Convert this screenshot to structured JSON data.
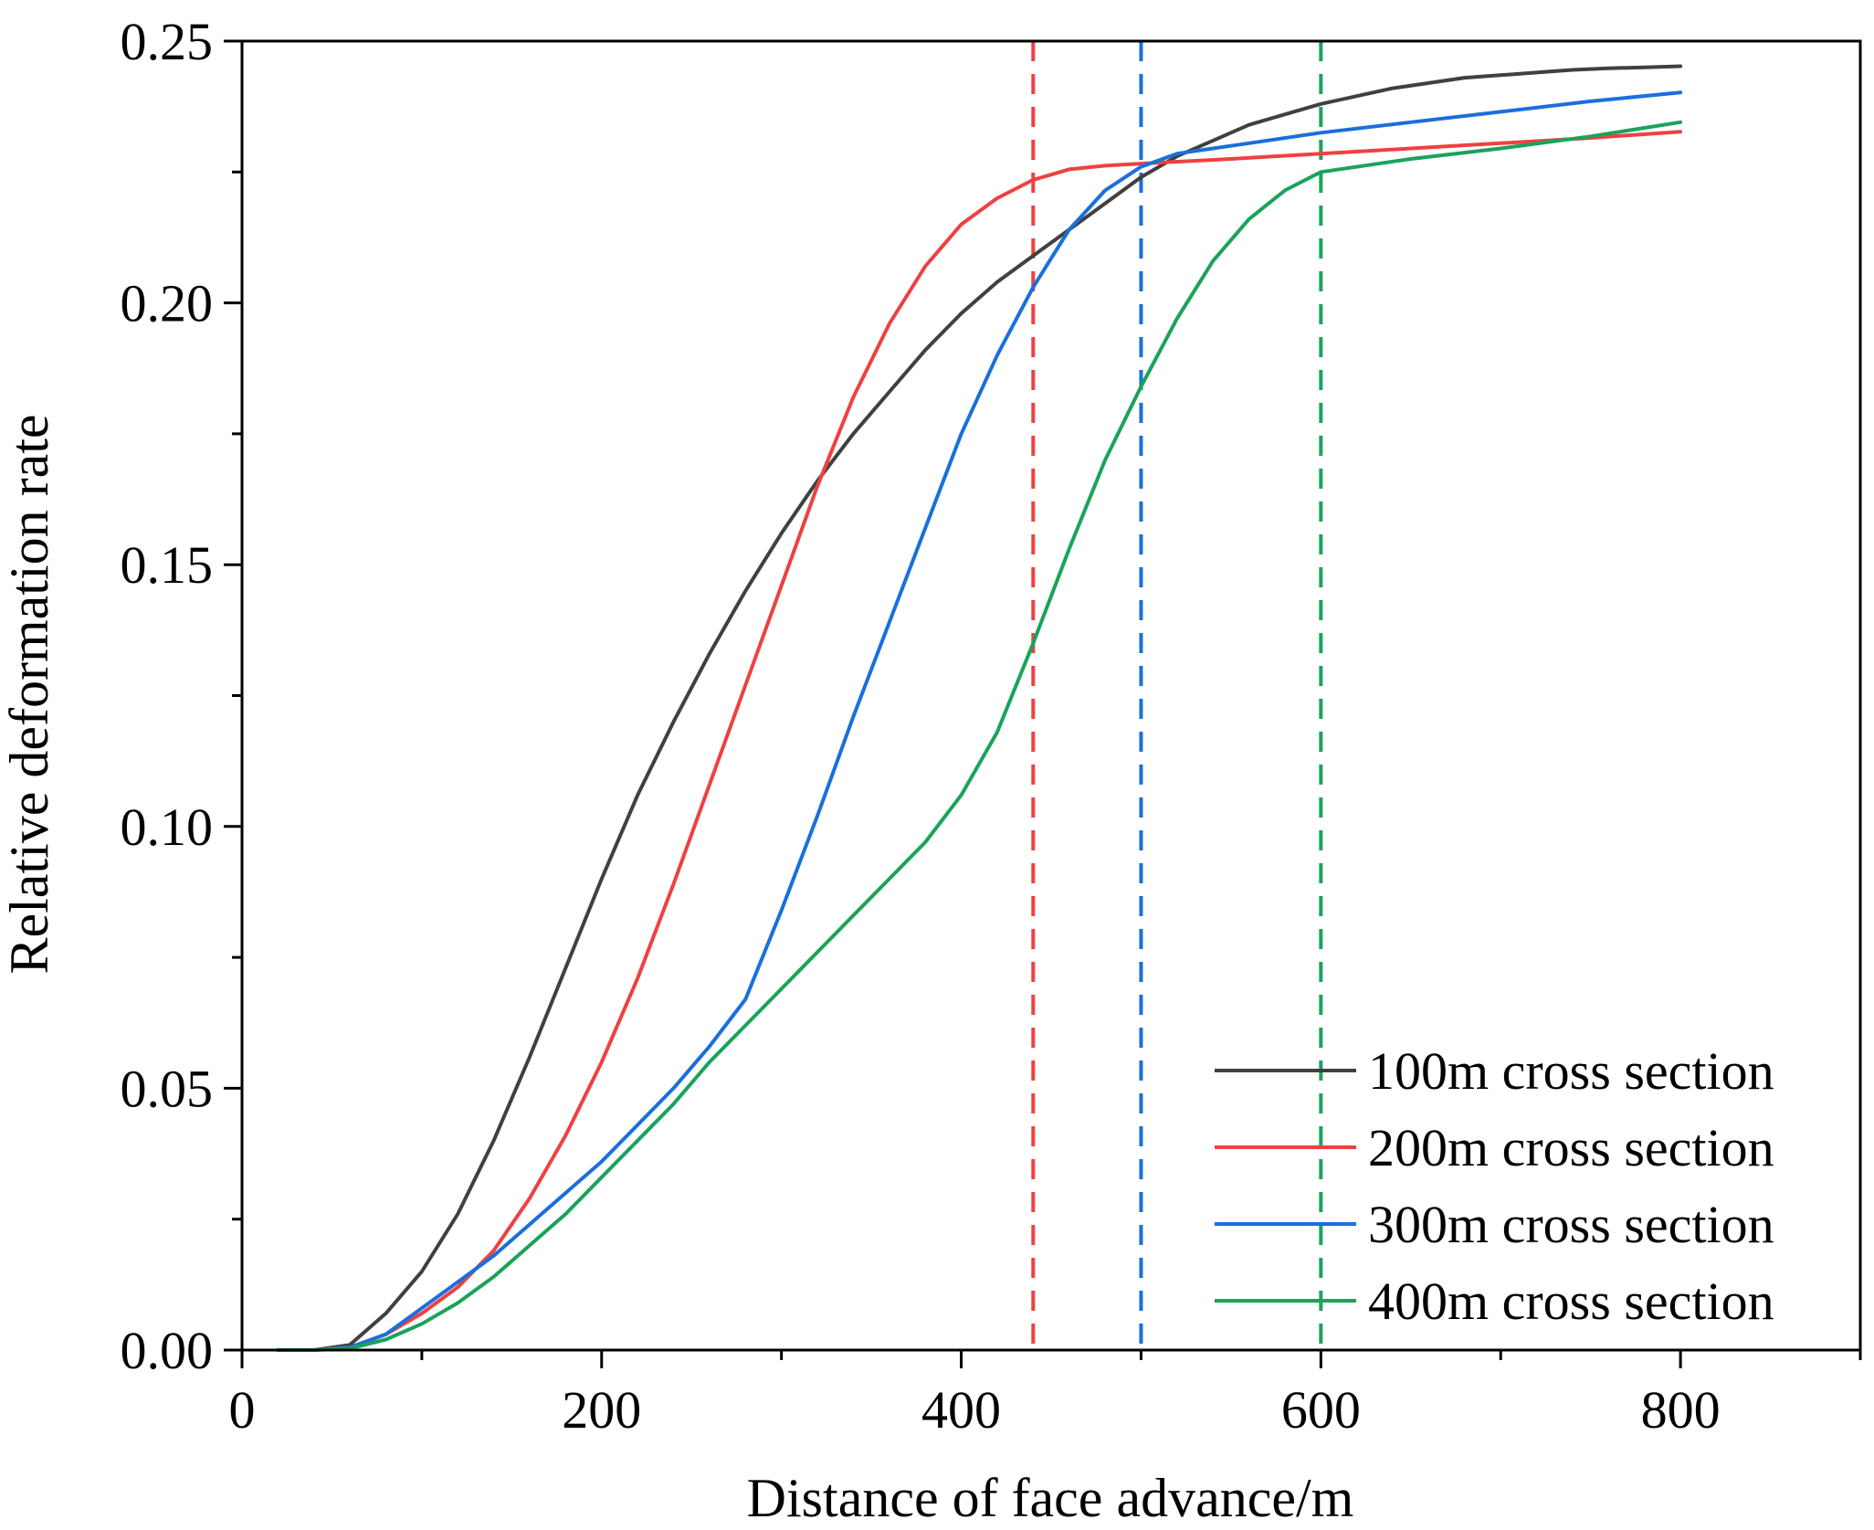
{
  "chart_data": {
    "type": "line",
    "title": "",
    "xlabel": "Distance of face advance/m",
    "ylabel": "Relative deformation rate",
    "xlim": [
      0,
      900
    ],
    "ylim": [
      0,
      0.25
    ],
    "x_ticks": [
      0,
      200,
      400,
      600,
      800
    ],
    "x_tick_labels": [
      "0",
      "200",
      "400",
      "600",
      "800"
    ],
    "y_ticks": [
      0,
      0.05,
      0.1,
      0.15,
      0.2,
      0.25
    ],
    "y_tick_labels": [
      "0.00",
      "0.05",
      "0.10",
      "0.15",
      "0.20",
      "0.25"
    ],
    "grid": false,
    "legend_position": "bottom-right",
    "series": [
      {
        "name": "100m cross section",
        "color": "#404040",
        "x": [
          20,
          40,
          60,
          80,
          100,
          120,
          140,
          160,
          180,
          200,
          220,
          240,
          260,
          280,
          300,
          320,
          340,
          360,
          380,
          400,
          420,
          440,
          460,
          480,
          500,
          520,
          540,
          560,
          580,
          600,
          620,
          640,
          660,
          680,
          700,
          720,
          740,
          760,
          780,
          800
        ],
        "y": [
          0,
          0,
          0.001,
          0.007,
          0.015,
          0.026,
          0.04,
          0.056,
          0.073,
          0.09,
          0.106,
          0.12,
          0.133,
          0.145,
          0.156,
          0.166,
          0.175,
          0.183,
          0.191,
          0.198,
          0.204,
          0.209,
          0.214,
          0.219,
          0.224,
          0.228,
          0.231,
          0.234,
          0.236,
          0.238,
          0.2395,
          0.241,
          0.242,
          0.243,
          0.2435,
          0.244,
          0.2445,
          0.2448,
          0.245,
          0.2452
        ]
      },
      {
        "name": "200m cross section",
        "color": "#ef4040",
        "x": [
          20,
          40,
          60,
          80,
          100,
          120,
          140,
          160,
          180,
          200,
          220,
          240,
          260,
          280,
          300,
          320,
          340,
          360,
          380,
          400,
          420,
          440,
          460,
          480,
          500,
          550,
          600,
          650,
          700,
          750,
          800
        ],
        "y": [
          0,
          0,
          0.0005,
          0.003,
          0.007,
          0.012,
          0.019,
          0.029,
          0.041,
          0.055,
          0.071,
          0.089,
          0.108,
          0.127,
          0.146,
          0.165,
          0.182,
          0.196,
          0.207,
          0.215,
          0.22,
          0.2235,
          0.2255,
          0.2262,
          0.2266,
          0.2275,
          0.2285,
          0.2295,
          0.2305,
          0.2315,
          0.2327
        ]
      },
      {
        "name": "300m cross section",
        "color": "#1a6fdc",
        "x": [
          20,
          40,
          60,
          80,
          100,
          120,
          140,
          160,
          180,
          200,
          220,
          240,
          260,
          280,
          300,
          320,
          340,
          360,
          380,
          400,
          420,
          440,
          460,
          480,
          500,
          520,
          540,
          560,
          600,
          650,
          700,
          750,
          800
        ],
        "y": [
          0,
          0,
          0.0005,
          0.003,
          0.008,
          0.013,
          0.018,
          0.024,
          0.03,
          0.036,
          0.043,
          0.05,
          0.058,
          0.067,
          0.084,
          0.102,
          0.121,
          0.139,
          0.157,
          0.175,
          0.19,
          0.203,
          0.214,
          0.2215,
          0.226,
          0.2285,
          0.2295,
          0.2305,
          0.2325,
          0.2345,
          0.2365,
          0.2385,
          0.2402
        ]
      },
      {
        "name": "400m cross section",
        "color": "#1aa35a",
        "x": [
          20,
          40,
          60,
          80,
          100,
          120,
          140,
          160,
          180,
          200,
          220,
          240,
          260,
          280,
          300,
          320,
          340,
          360,
          380,
          400,
          420,
          440,
          460,
          480,
          500,
          520,
          540,
          560,
          580,
          600,
          650,
          700,
          750,
          800
        ],
        "y": [
          0,
          0,
          0.0003,
          0.002,
          0.005,
          0.009,
          0.014,
          0.02,
          0.026,
          0.033,
          0.04,
          0.047,
          0.055,
          0.062,
          0.069,
          0.076,
          0.083,
          0.09,
          0.097,
          0.106,
          0.118,
          0.135,
          0.153,
          0.17,
          0.184,
          0.197,
          0.208,
          0.216,
          0.2215,
          0.225,
          0.2275,
          0.2295,
          0.2318,
          0.2345
        ]
      }
    ],
    "reference_lines": [
      {
        "x": 440,
        "color": "#ef4040",
        "style": "dashed"
      },
      {
        "x": 500,
        "color": "#1a6fdc",
        "style": "dashed"
      },
      {
        "x": 600,
        "color": "#1aa35a",
        "style": "dashed"
      }
    ]
  }
}
